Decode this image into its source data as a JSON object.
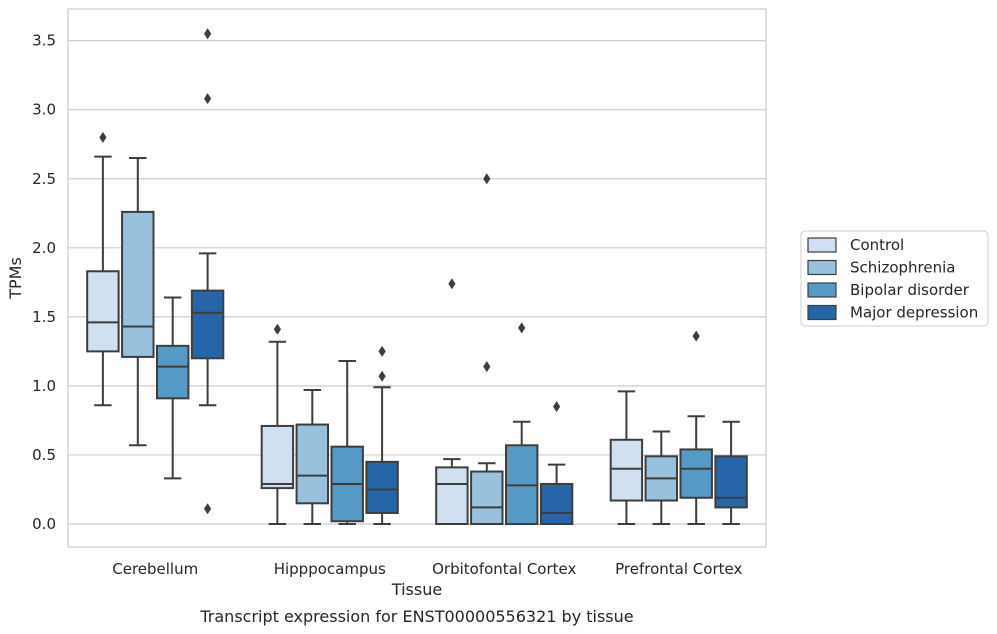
{
  "chart_data": {
    "type": "box",
    "title": "",
    "caption": "Transcript expression for ENST00000556321 by tissue",
    "xlabel": "Tissue",
    "ylabel": "TPMs",
    "ylim": [
      -0.17,
      3.73
    ],
    "yticks": [
      "0.0",
      "0.5",
      "1.0",
      "1.5",
      "2.0",
      "2.5",
      "3.0",
      "3.5"
    ],
    "grid": "horizontal",
    "legend_position": "right",
    "categories": [
      "Cerebellum",
      "Hipppocampus",
      "Orbitofontal Cortex",
      "Prefrontal Cortex"
    ],
    "series": [
      {
        "name": "Control",
        "color": "#d1e0f0",
        "boxes": [
          {
            "whisker_low": 0.86,
            "q1": 1.25,
            "median": 1.46,
            "q3": 1.83,
            "whisker_high": 2.66,
            "outliers": [
              2.8
            ]
          },
          {
            "whisker_low": 0.0,
            "q1": 0.26,
            "median": 0.29,
            "q3": 0.71,
            "whisker_high": 1.32,
            "outliers": [
              1.41
            ]
          },
          {
            "whisker_low": 0.0,
            "q1": 0.0,
            "median": 0.29,
            "q3": 0.41,
            "whisker_high": 0.47,
            "outliers": [
              1.74
            ]
          },
          {
            "whisker_low": 0.0,
            "q1": 0.17,
            "median": 0.4,
            "q3": 0.61,
            "whisker_high": 0.96,
            "outliers": []
          }
        ]
      },
      {
        "name": "Schizophrenia",
        "color": "#99c1dd",
        "boxes": [
          {
            "whisker_low": 0.57,
            "q1": 1.21,
            "median": 1.43,
            "q3": 2.26,
            "whisker_high": 2.65,
            "outliers": []
          },
          {
            "whisker_low": 0.0,
            "q1": 0.15,
            "median": 0.35,
            "q3": 0.72,
            "whisker_high": 0.97,
            "outliers": []
          },
          {
            "whisker_low": 0.0,
            "q1": 0.0,
            "median": 0.12,
            "q3": 0.38,
            "whisker_high": 0.44,
            "outliers": [
              2.5,
              1.14
            ]
          },
          {
            "whisker_low": 0.0,
            "q1": 0.17,
            "median": 0.33,
            "q3": 0.49,
            "whisker_high": 0.67,
            "outliers": []
          }
        ]
      },
      {
        "name": "Bipolar disorder",
        "color": "#5599c7",
        "boxes": [
          {
            "whisker_low": 0.33,
            "q1": 0.91,
            "median": 1.14,
            "q3": 1.29,
            "whisker_high": 1.64,
            "outliers": []
          },
          {
            "whisker_low": 0.0,
            "q1": 0.02,
            "median": 0.29,
            "q3": 0.56,
            "whisker_high": 1.18,
            "outliers": []
          },
          {
            "whisker_low": 0.0,
            "q1": 0.0,
            "median": 0.28,
            "q3": 0.57,
            "whisker_high": 0.74,
            "outliers": [
              1.42
            ]
          },
          {
            "whisker_low": 0.0,
            "q1": 0.19,
            "median": 0.4,
            "q3": 0.54,
            "whisker_high": 0.78,
            "outliers": [
              1.36
            ]
          }
        ]
      },
      {
        "name": "Major depression",
        "color": "#2666a8",
        "boxes": [
          {
            "whisker_low": 0.86,
            "q1": 1.2,
            "median": 1.53,
            "q3": 1.69,
            "whisker_high": 1.96,
            "outliers": [
              0.11,
              3.08,
              3.55
            ]
          },
          {
            "whisker_low": 0.0,
            "q1": 0.08,
            "median": 0.25,
            "q3": 0.45,
            "whisker_high": 0.99,
            "outliers": [
              1.07,
              1.25
            ]
          },
          {
            "whisker_low": 0.0,
            "q1": 0.0,
            "median": 0.08,
            "q3": 0.29,
            "whisker_high": 0.43,
            "outliers": [
              0.85
            ]
          },
          {
            "whisker_low": 0.0,
            "q1": 0.12,
            "median": 0.19,
            "q3": 0.49,
            "whisker_high": 0.74,
            "outliers": []
          }
        ]
      }
    ]
  }
}
